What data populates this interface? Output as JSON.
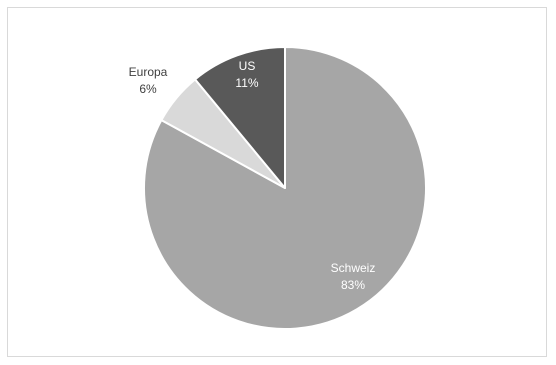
{
  "chart_data": {
    "type": "pie",
    "title": "",
    "legend": "none",
    "start_angle_deg": 0,
    "direction": "clockwise",
    "slices": [
      {
        "label": "Schweiz",
        "value": 83,
        "value_label": "83%",
        "color": "#a6a6a6",
        "label_color": "#ffffff"
      },
      {
        "label": "Europa",
        "value": 6,
        "value_label": "6%",
        "color": "#d9d9d9",
        "label_color": "#404040"
      },
      {
        "label": "US",
        "value": 11,
        "value_label": "11%",
        "color": "#595959",
        "label_color": "#ffffff"
      }
    ]
  }
}
